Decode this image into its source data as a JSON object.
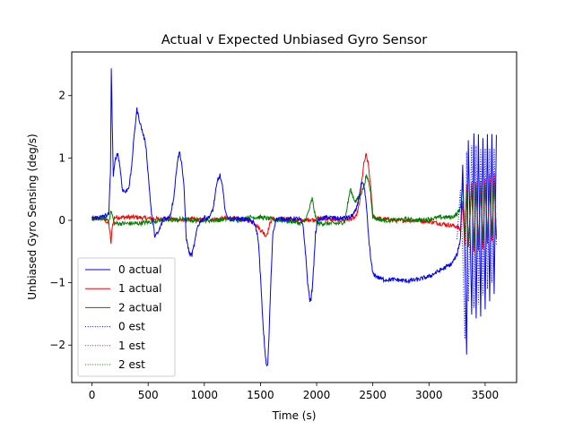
{
  "chart_data": {
    "type": "line",
    "title": "Actual v Expected Unbiased Gyro Sensor",
    "xlabel": "Time (s)",
    "ylabel": "Unbiased Gyro Sensing (deg/s)",
    "xlim": [
      -180,
      3780
    ],
    "ylim": [
      -2.6,
      2.7
    ],
    "xticks": [
      0,
      500,
      1000,
      1500,
      2000,
      2500,
      3000,
      3500
    ],
    "yticks": [
      -2,
      -1,
      0,
      1,
      2
    ],
    "xtick_labels": [
      "0",
      "500",
      "1000",
      "1500",
      "2000",
      "2500",
      "3000",
      "3500"
    ],
    "ytick_labels": [
      "−2",
      "−1",
      "0",
      "1",
      "2"
    ],
    "grid": false,
    "legend_position": "lower-left",
    "series": [
      {
        "name": "0 actual",
        "color": "#0000ff",
        "style": "solid",
        "x": [
          0,
          80,
          150,
          165,
          172,
          180,
          190,
          210,
          230,
          250,
          270,
          300,
          330,
          350,
          380,
          400,
          430,
          460,
          480,
          500,
          530,
          560,
          590,
          610,
          640,
          670,
          700,
          730,
          760,
          780,
          800,
          820,
          840,
          870,
          890,
          910,
          940,
          970,
          1000,
          1030,
          1060,
          1080,
          1100,
          1120,
          1140,
          1160,
          1180,
          1200,
          1250,
          1300,
          1350,
          1400,
          1450,
          1480,
          1500,
          1520,
          1540,
          1555,
          1565,
          1575,
          1590,
          1610,
          1640,
          1700,
          1750,
          1800,
          1850,
          1880,
          1900,
          1920,
          1940,
          1950,
          1960,
          1975,
          1990,
          2010,
          2050,
          2100,
          2200,
          2300,
          2350,
          2380,
          2400,
          2420,
          2440,
          2460,
          2480,
          2500,
          2550,
          2600,
          2700,
          2800,
          2900,
          3000,
          3050,
          3100,
          3150,
          3200,
          3250,
          3280,
          3300,
          3320,
          3335,
          3350,
          3380,
          3400,
          3420,
          3440,
          3460,
          3480,
          3500,
          3520,
          3540,
          3560,
          3580,
          3600
        ],
        "y": [
          0.03,
          0.05,
          0.1,
          0.8,
          2.45,
          1.6,
          0.7,
          1.0,
          1.08,
          0.85,
          0.5,
          0.45,
          0.55,
          0.8,
          1.45,
          1.78,
          1.55,
          1.35,
          1.2,
          0.75,
          0.1,
          -0.25,
          -0.2,
          -0.1,
          0.05,
          0.02,
          0.1,
          0.4,
          0.95,
          1.1,
          0.9,
          0.5,
          -0.3,
          -0.55,
          -0.55,
          -0.4,
          -0.1,
          0.0,
          0.05,
          0.03,
          0.1,
          0.2,
          0.45,
          0.65,
          0.72,
          0.55,
          0.25,
          0.05,
          0.02,
          0.03,
          0.02,
          0.0,
          -0.05,
          -0.3,
          -0.9,
          -1.6,
          -2.1,
          -2.35,
          -2.3,
          -1.9,
          -1.1,
          -0.2,
          0.02,
          0.03,
          0.02,
          0.03,
          0.02,
          -0.1,
          -0.5,
          -1.0,
          -1.28,
          -1.28,
          -1.1,
          -0.7,
          -0.2,
          0.0,
          0.03,
          0.05,
          0.03,
          0.05,
          0.15,
          0.4,
          0.6,
          0.55,
          0.3,
          -0.2,
          -0.6,
          -0.85,
          -0.92,
          -0.95,
          -0.95,
          -0.97,
          -0.95,
          -0.9,
          -0.85,
          -0.8,
          -0.75,
          -0.7,
          -0.55,
          -0.3,
          0.9,
          -0.6,
          -2.15,
          1.3,
          -1.5,
          1.42,
          -1.6,
          1.4,
          -1.55,
          1.35,
          -1.4,
          1.35,
          -1.3,
          1.35,
          -1.2,
          1.37
        ]
      },
      {
        "name": "1 actual",
        "color": "#ff0000",
        "style": "solid",
        "x": [
          0,
          100,
          150,
          160,
          170,
          180,
          200,
          300,
          400,
          500,
          600,
          700,
          800,
          900,
          1000,
          1100,
          1200,
          1300,
          1400,
          1450,
          1500,
          1530,
          1550,
          1570,
          1590,
          1610,
          1650,
          1700,
          1800,
          1900,
          1950,
          1970,
          2000,
          2100,
          2200,
          2300,
          2350,
          2380,
          2400,
          2420,
          2440,
          2460,
          2480,
          2500,
          2530,
          2600,
          2700,
          2800,
          2900,
          3000,
          3100,
          3200,
          3250,
          3280,
          3300,
          3320,
          3335,
          3350,
          3380,
          3400,
          3420,
          3440,
          3460,
          3480,
          3500,
          3520,
          3540,
          3560,
          3580,
          3600
        ],
        "y": [
          0.03,
          0.02,
          -0.05,
          -0.2,
          -0.38,
          -0.1,
          0.05,
          0.05,
          0.05,
          0.03,
          0.02,
          0.03,
          0.0,
          0.02,
          0.0,
          0.02,
          0.03,
          0.02,
          0.0,
          -0.05,
          -0.15,
          -0.2,
          -0.25,
          -0.15,
          -0.02,
          0.03,
          0.0,
          0.02,
          0.0,
          0.0,
          0.02,
          0.0,
          0.03,
          0.02,
          0.0,
          0.02,
          0.05,
          0.25,
          0.6,
          0.9,
          1.05,
          0.9,
          0.55,
          0.1,
          0.03,
          0.02,
          0.0,
          0.0,
          0.0,
          -0.02,
          -0.05,
          -0.08,
          -0.1,
          -0.15,
          0.3,
          -0.4,
          0.55,
          -0.45,
          0.6,
          -0.5,
          0.65,
          -0.5,
          0.65,
          -0.45,
          0.7,
          -0.4,
          0.72,
          -0.35,
          0.75,
          -0.3
        ]
      },
      {
        "name": "2 actual",
        "color": "#008000",
        "style": "solid",
        "x": [
          0,
          100,
          150,
          170,
          200,
          300,
          400,
          500,
          600,
          700,
          800,
          900,
          1000,
          1100,
          1200,
          1300,
          1400,
          1500,
          1600,
          1700,
          1800,
          1850,
          1900,
          1930,
          1960,
          1980,
          2000,
          2050,
          2100,
          2200,
          2250,
          2280,
          2300,
          2330,
          2350,
          2380,
          2400,
          2420,
          2440,
          2460,
          2480,
          2500,
          2550,
          2600,
          2700,
          2800,
          2900,
          3000,
          3100,
          3200,
          3250,
          3280,
          3300,
          3320,
          3335,
          3350,
          3380,
          3400,
          3420,
          3440,
          3460,
          3480,
          3500,
          3520,
          3540,
          3560,
          3580,
          3600
        ],
        "y": [
          0.02,
          0.05,
          0.0,
          0.15,
          -0.05,
          -0.05,
          -0.05,
          -0.03,
          0.0,
          0.0,
          0.02,
          0.0,
          0.0,
          0.0,
          0.02,
          0.0,
          0.05,
          0.05,
          0.02,
          0.0,
          -0.02,
          -0.05,
          0.0,
          0.15,
          0.35,
          0.15,
          -0.05,
          -0.05,
          -0.05,
          -0.05,
          -0.02,
          0.3,
          0.5,
          0.35,
          0.3,
          0.4,
          0.45,
          0.55,
          0.7,
          0.65,
          0.45,
          0.05,
          0.02,
          0.0,
          0.0,
          0.02,
          0.0,
          0.02,
          0.05,
          0.05,
          0.1,
          0.2,
          0.6,
          -0.3,
          0.5,
          -0.4,
          0.55,
          -0.45,
          0.6,
          -0.45,
          0.6,
          -0.4,
          0.62,
          -0.35,
          0.6,
          -0.3,
          0.6,
          -0.25
        ]
      },
      {
        "name": "0 est",
        "color": "#0000ff",
        "style": "dotted",
        "x": [
          3250,
          3280,
          3300,
          3320,
          3335,
          3350,
          3380,
          3400,
          3420,
          3440,
          3460,
          3480,
          3500,
          3520,
          3540,
          3560,
          3580,
          3600
        ],
        "y": [
          -0.3,
          0.5,
          -0.5,
          -1.9,
          1.1,
          -1.3,
          1.2,
          -1.4,
          1.2,
          -1.35,
          1.15,
          -1.2,
          1.15,
          -1.1,
          1.15,
          -1.0,
          1.15,
          -0.4
        ]
      },
      {
        "name": "1 est",
        "color": "#ff0000",
        "style": "dotted",
        "x": [
          3250,
          3280,
          3300,
          3320,
          3335,
          3350,
          3380,
          3400,
          3420,
          3440,
          3460,
          3480,
          3500,
          3520,
          3540,
          3560,
          3580,
          3600
        ],
        "y": [
          -0.1,
          -0.15,
          0.25,
          -0.35,
          0.5,
          -0.4,
          0.55,
          -0.45,
          0.6,
          -0.45,
          0.6,
          -0.4,
          0.65,
          -0.35,
          0.68,
          -0.3,
          0.7,
          -0.25
        ]
      },
      {
        "name": "2 est",
        "color": "#008000",
        "style": "dotted",
        "x": [
          3250,
          3280,
          3300,
          3320,
          3335,
          3350,
          3380,
          3400,
          3420,
          3440,
          3460,
          3480,
          3500,
          3520,
          3540,
          3560,
          3580,
          3600
        ],
        "y": [
          0.1,
          0.2,
          0.55,
          -0.25,
          0.45,
          -0.35,
          0.5,
          -0.4,
          0.55,
          -0.4,
          0.55,
          -0.35,
          0.58,
          -0.3,
          0.55,
          -0.25,
          0.55,
          -0.2
        ]
      }
    ]
  }
}
